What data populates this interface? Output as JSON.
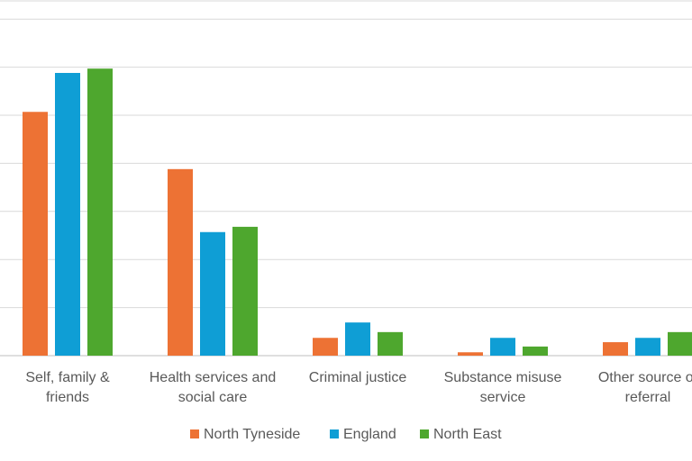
{
  "chart_data": {
    "type": "bar",
    "title": "",
    "xlabel": "",
    "ylabel": "",
    "ylim": [
      0,
      7.4
    ],
    "y_tick_labels_visible": false,
    "grid": true,
    "legend_placement": "bottom",
    "categories": [
      [
        "Self, family &",
        "friends"
      ],
      [
        "Health services and",
        "social care"
      ],
      [
        "Criminal justice"
      ],
      [
        "Substance misuse",
        "service"
      ],
      [
        "Other source of",
        "referral"
      ]
    ],
    "series": [
      {
        "name": "North Tyneside",
        "color": "#ED7234",
        "values": [
          5.07,
          3.88,
          0.37,
          0.07,
          0.28
        ]
      },
      {
        "name": "England",
        "color": "#0F9ED5",
        "values": [
          5.88,
          2.57,
          0.69,
          0.37,
          0.37
        ]
      },
      {
        "name": "North East",
        "color": "#4EA72E",
        "values": [
          5.97,
          2.68,
          0.49,
          0.19,
          0.49
        ]
      }
    ]
  }
}
